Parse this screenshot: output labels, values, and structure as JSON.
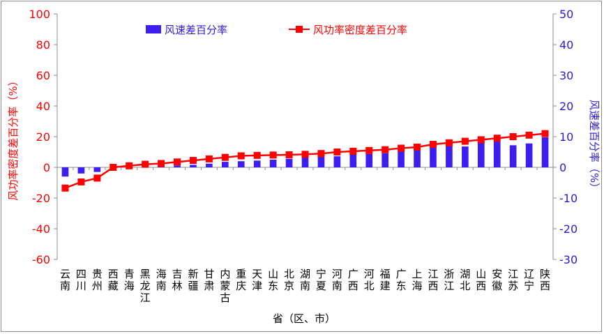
{
  "chart_data": {
    "type": "bar+line",
    "xlabel": "省（区、市）",
    "categories": [
      "云南",
      "四川",
      "贵州",
      "西藏",
      "青海",
      "黑龙江",
      "海南",
      "吉林",
      "新疆",
      "甘肃",
      "内蒙古",
      "重庆",
      "天津",
      "山东",
      "北京",
      "湖南",
      "宁夏",
      "河南",
      "广西",
      "河北",
      "福建",
      "广东",
      "上海",
      "江西",
      "浙江",
      "湖北",
      "山西",
      "安徽",
      "江苏",
      "辽宁",
      "陕西"
    ],
    "series": [
      {
        "name": "风速差百分率",
        "type": "bar",
        "axis": "right",
        "color": "#3d1ef0",
        "values": [
          -3.0,
          -2.0,
          -1.5,
          -0.2,
          0.0,
          0.3,
          0.5,
          0.6,
          0.8,
          1.2,
          1.8,
          2.0,
          2.2,
          2.5,
          2.8,
          3.2,
          3.4,
          3.6,
          4.2,
          4.4,
          4.6,
          5.5,
          6.0,
          8.0,
          7.0,
          6.8,
          8.2,
          8.5,
          7.2,
          7.8,
          9.8
        ]
      },
      {
        "name": "风功率密度差百分率",
        "type": "line",
        "axis": "left",
        "color": "#ff0000",
        "values": [
          -13.5,
          -9.5,
          -7.0,
          0.0,
          1.0,
          2.0,
          2.5,
          3.5,
          4.5,
          5.5,
          6.5,
          7.5,
          7.8,
          8.0,
          8.2,
          8.5,
          9.0,
          10.0,
          10.5,
          11.0,
          11.5,
          12.5,
          13.2,
          15.0,
          16.0,
          17.0,
          18.0,
          19.0,
          20.0,
          21.0,
          22.0
        ]
      }
    ],
    "y_left": {
      "label": "风功率密度差百分率（%）",
      "min": -60,
      "max": 100,
      "ticks": [
        "100",
        "80",
        "60",
        "40",
        "20",
        "0",
        "-20",
        "-40",
        "-60"
      ],
      "color": "#ff0000"
    },
    "y_right": {
      "label": "风速差百分率（%）",
      "min": -30,
      "max": 50,
      "ticks": [
        "50",
        "40",
        "30",
        "20",
        "10",
        "0",
        "-10",
        "-20",
        "-30"
      ],
      "color": "#2a1bd6"
    },
    "legend_position": "top",
    "grid": false
  }
}
